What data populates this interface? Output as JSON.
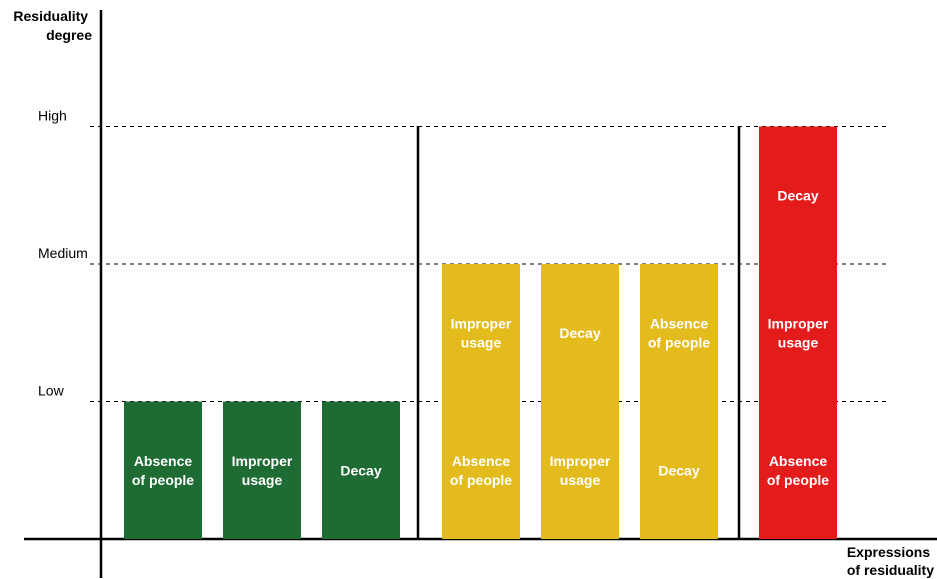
{
  "chart_data": {
    "type": "bar",
    "ylabel": [
      "Residuality",
      "degree"
    ],
    "xlabel": [
      "Expressions",
      "of residuality"
    ],
    "levels": [
      "Low",
      "Medium",
      "High"
    ],
    "colors": {
      "low": "#1f6b34",
      "medium": "#e3bb1c",
      "high": "#e41b1b"
    },
    "groups": [
      {
        "level": "Low",
        "value": 1,
        "color_key": "low",
        "bars": [
          {
            "segments": [
              [
                "Absence",
                "of people"
              ]
            ]
          },
          {
            "segments": [
              [
                "Improper",
                "usage"
              ]
            ]
          },
          {
            "segments": [
              [
                "Decay"
              ]
            ]
          }
        ]
      },
      {
        "level": "Medium",
        "value": 2,
        "color_key": "medium",
        "bars": [
          {
            "segments": [
              [
                "Absence",
                "of people"
              ],
              [
                "Improper",
                "usage"
              ]
            ]
          },
          {
            "segments": [
              [
                "Improper",
                "usage"
              ],
              [
                "Decay"
              ]
            ]
          },
          {
            "segments": [
              [
                "Decay"
              ],
              [
                "Absence",
                "of people"
              ]
            ]
          }
        ]
      },
      {
        "level": "High",
        "value": 3,
        "color_key": "high",
        "bars": [
          {
            "segments": [
              [
                "Absence",
                "of people"
              ],
              [
                "Improper",
                "usage"
              ],
              [
                "Decay"
              ]
            ]
          }
        ]
      }
    ]
  }
}
